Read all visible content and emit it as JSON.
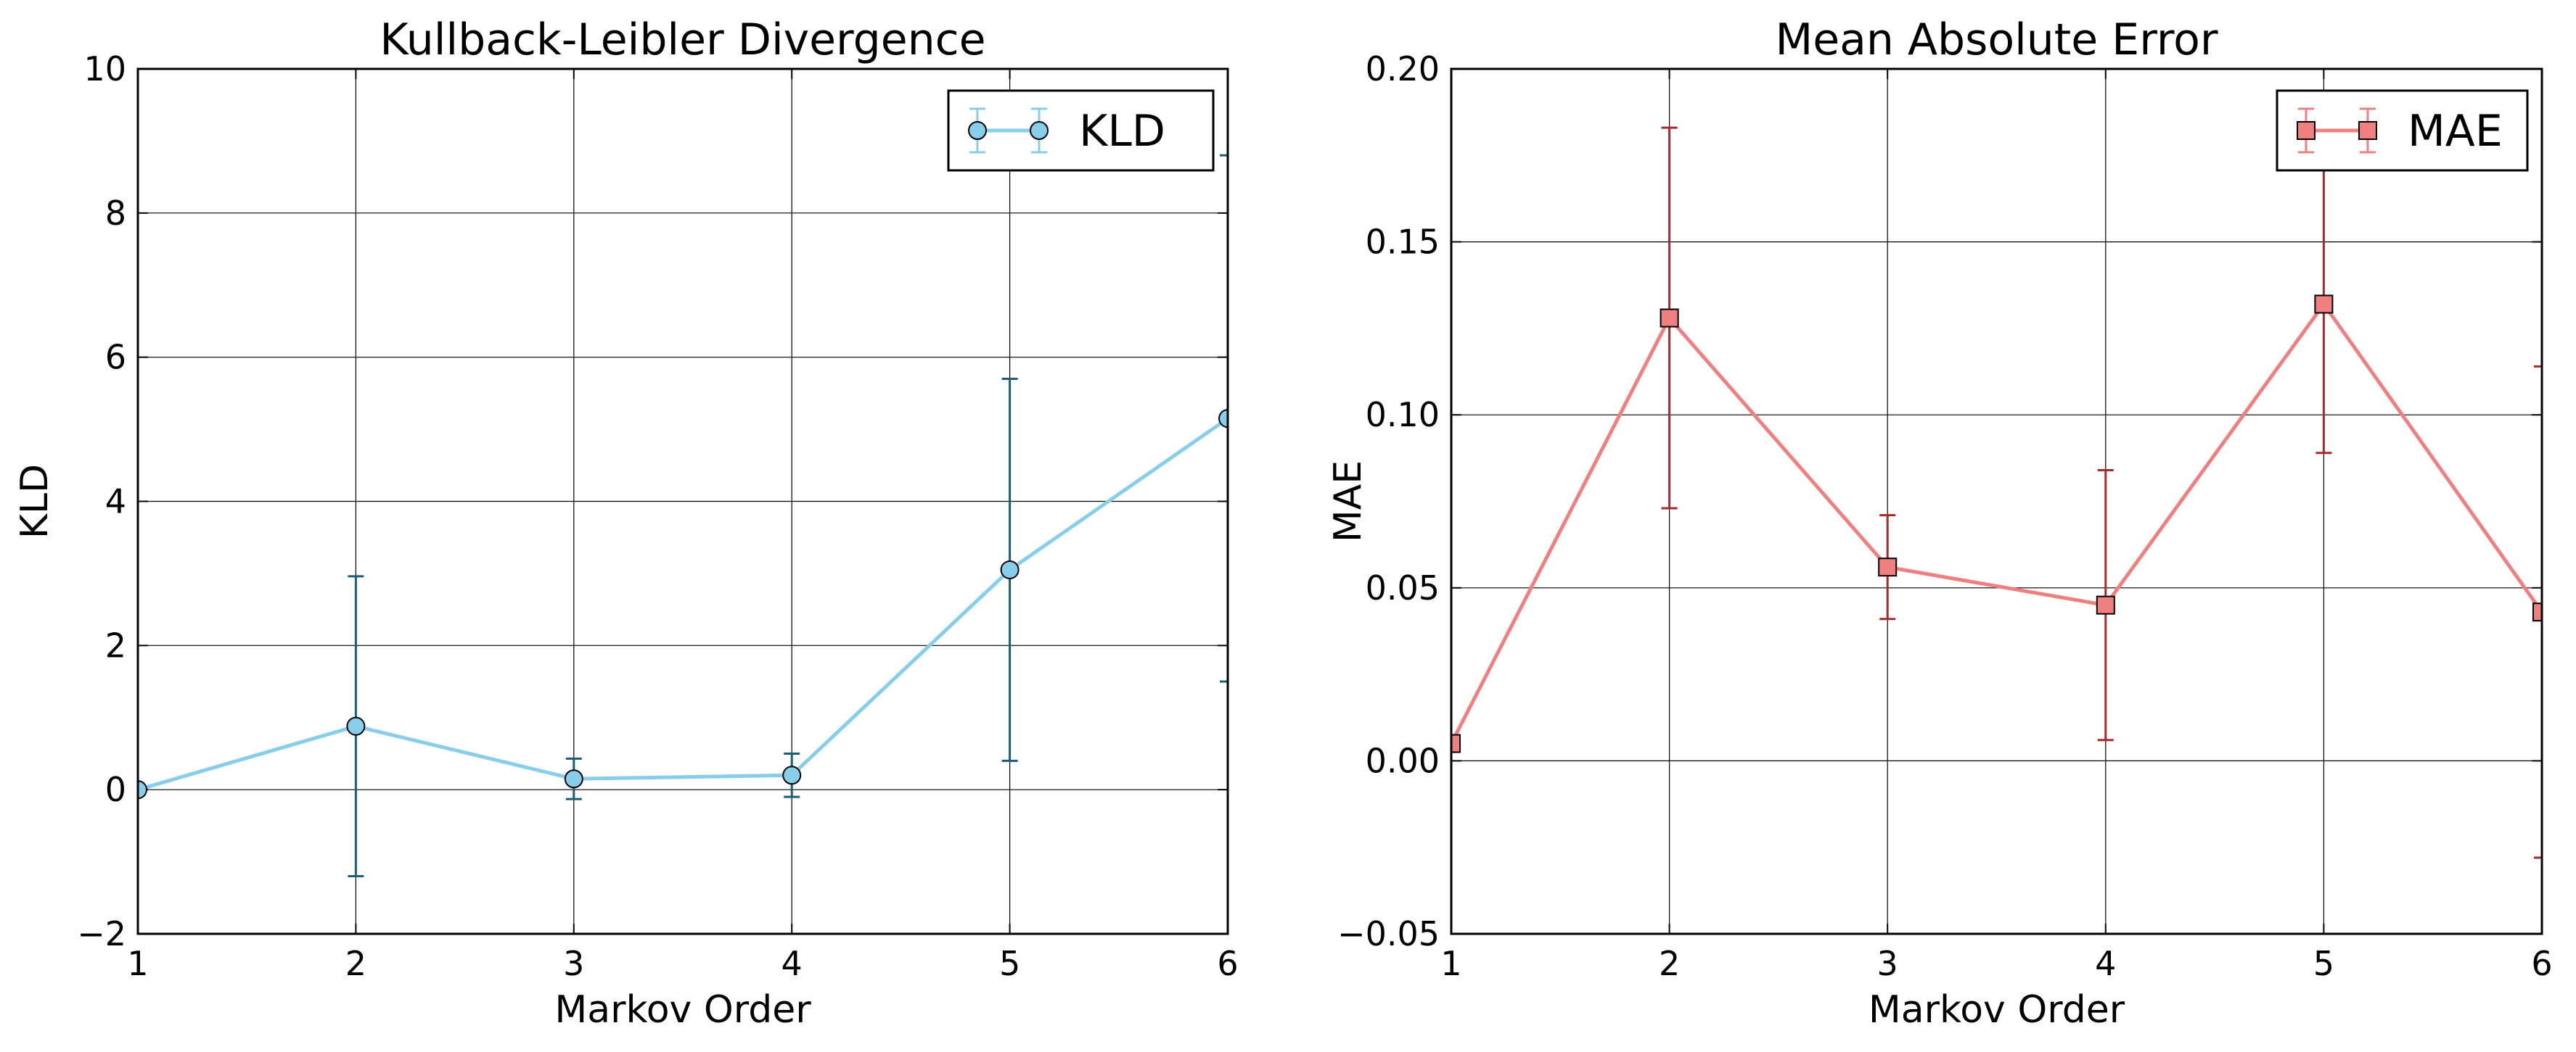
{
  "chart_data": [
    {
      "type": "line",
      "title": "Kullback-Leibler Divergence",
      "xlabel": "Markov Order",
      "ylabel": "KLD",
      "xlim": [
        1,
        6
      ],
      "ylim": [
        -2,
        10
      ],
      "xticks": [
        1,
        2,
        3,
        4,
        5,
        6
      ],
      "yticks": [
        -2,
        0,
        2,
        4,
        6,
        8,
        10
      ],
      "ytick_labels": [
        "−2",
        "0",
        "2",
        "4",
        "6",
        "8",
        "10"
      ],
      "grid": true,
      "legend_position": "top-right",
      "marker": "circle",
      "series": [
        {
          "name": "KLD",
          "x": [
            1,
            2,
            3,
            4,
            5,
            6
          ],
          "y": [
            0.0,
            0.88,
            0.15,
            0.2,
            3.05,
            5.15
          ],
          "yerr": [
            0.0,
            2.08,
            0.28,
            0.3,
            2.65,
            3.65
          ],
          "line_color": "#87CEEB",
          "marker_color": "#87CEEB",
          "err_color": "#1B5E7A"
        }
      ]
    },
    {
      "type": "line",
      "title": "Mean Absolute Error",
      "xlabel": "Markov Order",
      "ylabel": "MAE",
      "xlim": [
        1,
        6
      ],
      "ylim": [
        -0.05,
        0.2
      ],
      "xticks": [
        1,
        2,
        3,
        4,
        5,
        6
      ],
      "yticks": [
        -0.05,
        0.0,
        0.05,
        0.1,
        0.15,
        0.2
      ],
      "ytick_labels": [
        "−0.05",
        "0.00",
        "0.05",
        "0.10",
        "0.15",
        "0.20"
      ],
      "grid": true,
      "legend_position": "top-right",
      "marker": "square",
      "series": [
        {
          "name": "MAE",
          "x": [
            1,
            2,
            3,
            4,
            5,
            6
          ],
          "y": [
            0.005,
            0.128,
            0.056,
            0.045,
            0.132,
            0.043
          ],
          "yerr": [
            0.0,
            0.055,
            0.015,
            0.039,
            0.043,
            0.071
          ],
          "line_color": "#F08080",
          "marker_color": "#F08080",
          "err_color": "#A52A2A"
        }
      ]
    }
  ]
}
